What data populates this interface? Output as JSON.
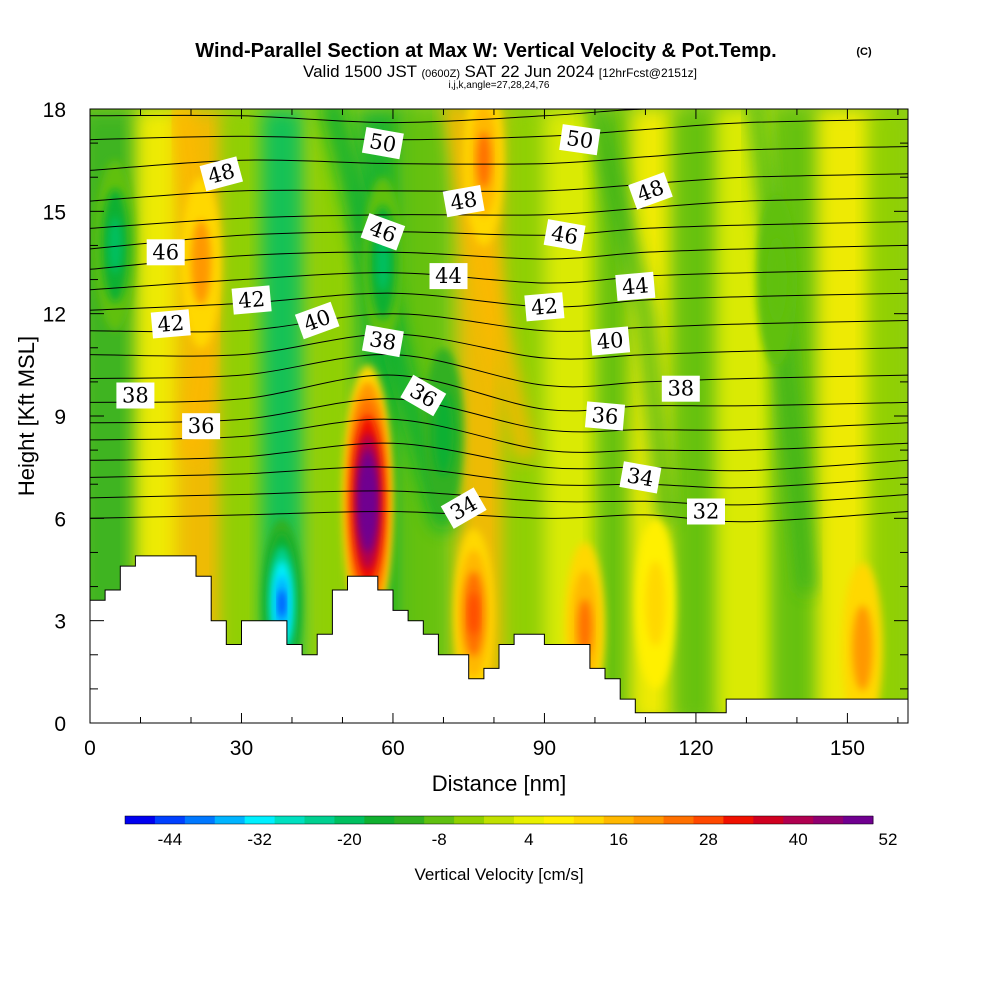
{
  "chart_data": {
    "type": "heatmap",
    "title": "Wind-Parallel Section at Max W: Vertical Velocity & Pot.Temp.",
    "title_mark": "(C)",
    "subtitle": {
      "valid_prefix": "Valid 1500 JST",
      "zulu": "(0600Z)",
      "date": "SAT 22 Jun 2024",
      "forecast": "[12hrFcst@2151z]",
      "indices": "i,j,k,angle=27,28,24,76"
    },
    "xlabel": "Distance [nm]",
    "ylabel": "Height [Kft MSL]",
    "xlim": [
      0,
      162
    ],
    "ylim": [
      0,
      18
    ],
    "xticks": [
      "0",
      "30",
      "60",
      "90",
      "120",
      "150"
    ],
    "yticks": [
      "0",
      "3",
      "6",
      "9",
      "12",
      "15",
      "18"
    ],
    "colorbar": {
      "label": "Vertical Velocity [cm/s]",
      "tick_labels": [
        "-44",
        "-32",
        "-20",
        "-8",
        "4",
        "16",
        "28",
        "40",
        "52"
      ],
      "colors": [
        "#0000f0",
        "#0040ff",
        "#0078ff",
        "#00b4ff",
        "#00f0ff",
        "#00e0c0",
        "#00d090",
        "#00c060",
        "#10b030",
        "#30b020",
        "#60c010",
        "#90d000",
        "#c0e000",
        "#e8f000",
        "#fff000",
        "#ffd800",
        "#ffb800",
        "#ff9800",
        "#ff7000",
        "#ff4800",
        "#f01000",
        "#d00020",
        "#b00050",
        "#900070",
        "#700090"
      ]
    },
    "wmax_feature": {
      "x_nm": 55,
      "z_kft": 6.5,
      "w_cms": 60
    },
    "updrafts": [
      {
        "x_nm": 22,
        "z_kft": 13.5,
        "w_cms": 18
      },
      {
        "x_nm": 78,
        "z_kft": 16.5,
        "w_cms": 22
      },
      {
        "x_nm": 76,
        "z_kft": 3.2,
        "w_cms": 28
      },
      {
        "x_nm": 98,
        "z_kft": 2.8,
        "w_cms": 24
      },
      {
        "x_nm": 112,
        "z_kft": 3.5,
        "w_cms": 12
      },
      {
        "x_nm": 153,
        "z_kft": 2.2,
        "w_cms": 18
      }
    ],
    "downdrafts": [
      {
        "x_nm": 38,
        "z_kft": 3.5,
        "w_cms": -44
      },
      {
        "x_nm": 58,
        "z_kft": 13.5,
        "w_cms": -22
      },
      {
        "x_nm": 70,
        "z_kft": 8.5,
        "w_cms": -18
      },
      {
        "x_nm": 5,
        "z_kft": 14,
        "w_cms": -20
      },
      {
        "x_nm": 136,
        "z_kft": 13,
        "w_cms": -10
      }
    ],
    "terrain": [
      [
        0,
        3.6
      ],
      [
        3,
        3.6
      ],
      [
        3,
        3.9
      ],
      [
        6,
        3.9
      ],
      [
        6,
        4.6
      ],
      [
        9,
        4.6
      ],
      [
        9,
        4.9
      ],
      [
        21,
        4.9
      ],
      [
        21,
        4.3
      ],
      [
        24,
        4.3
      ],
      [
        24,
        3.0
      ],
      [
        27,
        3.0
      ],
      [
        27,
        2.3
      ],
      [
        30,
        2.3
      ],
      [
        30,
        3.0
      ],
      [
        39,
        3.0
      ],
      [
        39,
        2.3
      ],
      [
        42,
        2.3
      ],
      [
        42,
        2.0
      ],
      [
        45,
        2.0
      ],
      [
        45,
        2.6
      ],
      [
        48,
        2.6
      ],
      [
        48,
        3.9
      ],
      [
        51,
        3.9
      ],
      [
        51,
        4.3
      ],
      [
        57,
        4.3
      ],
      [
        57,
        3.9
      ],
      [
        60,
        3.9
      ],
      [
        60,
        3.3
      ],
      [
        63,
        3.3
      ],
      [
        63,
        3.0
      ],
      [
        66,
        3.0
      ],
      [
        66,
        2.6
      ],
      [
        69,
        2.6
      ],
      [
        69,
        2.0
      ],
      [
        75,
        2.0
      ],
      [
        75,
        1.3
      ],
      [
        78,
        1.3
      ],
      [
        78,
        1.6
      ],
      [
        81,
        1.6
      ],
      [
        81,
        2.3
      ],
      [
        84,
        2.3
      ],
      [
        84,
        2.6
      ],
      [
        90,
        2.6
      ],
      [
        90,
        2.3
      ],
      [
        99,
        2.3
      ],
      [
        99,
        1.6
      ],
      [
        102,
        1.6
      ],
      [
        102,
        1.3
      ],
      [
        105,
        1.3
      ],
      [
        105,
        0.7
      ],
      [
        108,
        0.7
      ],
      [
        108,
        0.3
      ],
      [
        111,
        0.3
      ],
      [
        111,
        0.3
      ],
      [
        126,
        0.3
      ],
      [
        126,
        0.7
      ],
      [
        162,
        0.7
      ]
    ],
    "theta_contours": [
      {
        "label": "32",
        "pts": [
          [
            0,
            6.0
          ],
          [
            30,
            6.1
          ],
          [
            60,
            6.2
          ],
          [
            90,
            6.0
          ],
          [
            110,
            6.1
          ],
          [
            130,
            5.9
          ],
          [
            162,
            6.2
          ]
        ]
      },
      {
        "label": "33",
        "pts": [
          [
            0,
            6.6
          ],
          [
            30,
            6.7
          ],
          [
            60,
            6.8
          ],
          [
            90,
            6.5
          ],
          [
            110,
            6.5
          ],
          [
            130,
            6.4
          ],
          [
            162,
            6.7
          ]
        ]
      },
      {
        "label": "34",
        "pts": [
          [
            0,
            7.2
          ],
          [
            30,
            7.3
          ],
          [
            60,
            7.5
          ],
          [
            90,
            7.0
          ],
          [
            110,
            7.0
          ],
          [
            130,
            6.9
          ],
          [
            162,
            7.2
          ]
        ]
      },
      {
        "label": "35",
        "pts": [
          [
            0,
            7.7
          ],
          [
            30,
            7.8
          ],
          [
            60,
            8.2
          ],
          [
            90,
            7.5
          ],
          [
            110,
            7.5
          ],
          [
            130,
            7.4
          ],
          [
            162,
            7.7
          ]
        ]
      },
      {
        "label": "36",
        "pts": [
          [
            0,
            8.3
          ],
          [
            30,
            8.4
          ],
          [
            60,
            8.9
          ],
          [
            90,
            8.0
          ],
          [
            110,
            8.0
          ],
          [
            130,
            8.0
          ],
          [
            162,
            8.2
          ]
        ]
      },
      {
        "label": "37",
        "pts": [
          [
            0,
            8.8
          ],
          [
            30,
            8.9
          ],
          [
            60,
            9.5
          ],
          [
            90,
            8.6
          ],
          [
            110,
            8.6
          ],
          [
            130,
            8.6
          ],
          [
            162,
            8.8
          ]
        ]
      },
      {
        "label": "38",
        "pts": [
          [
            0,
            9.4
          ],
          [
            30,
            9.5
          ],
          [
            60,
            10.2
          ],
          [
            90,
            9.2
          ],
          [
            110,
            9.3
          ],
          [
            130,
            9.3
          ],
          [
            162,
            9.4
          ]
        ]
      },
      {
        "label": "39",
        "pts": [
          [
            0,
            10.1
          ],
          [
            30,
            10.2
          ],
          [
            60,
            10.8
          ],
          [
            90,
            9.9
          ],
          [
            110,
            10.0
          ],
          [
            130,
            10.1
          ],
          [
            162,
            10.2
          ]
        ]
      },
      {
        "label": "40",
        "pts": [
          [
            0,
            10.8
          ],
          [
            30,
            10.8
          ],
          [
            60,
            11.4
          ],
          [
            90,
            10.7
          ],
          [
            110,
            10.8
          ],
          [
            130,
            10.9
          ],
          [
            162,
            11.0
          ]
        ]
      },
      {
        "label": "41",
        "pts": [
          [
            0,
            11.5
          ],
          [
            30,
            11.5
          ],
          [
            60,
            12.0
          ],
          [
            90,
            11.5
          ],
          [
            110,
            11.6
          ],
          [
            130,
            11.7
          ],
          [
            162,
            11.8
          ]
        ]
      },
      {
        "label": "42",
        "pts": [
          [
            0,
            12.1
          ],
          [
            30,
            12.3
          ],
          [
            60,
            12.6
          ],
          [
            90,
            12.2
          ],
          [
            110,
            12.4
          ],
          [
            130,
            12.5
          ],
          [
            162,
            12.6
          ]
        ]
      },
      {
        "label": "43",
        "pts": [
          [
            0,
            12.7
          ],
          [
            30,
            13.0
          ],
          [
            60,
            13.2
          ],
          [
            90,
            12.9
          ],
          [
            110,
            13.1
          ],
          [
            130,
            13.2
          ],
          [
            162,
            13.3
          ]
        ]
      },
      {
        "label": "44",
        "pts": [
          [
            0,
            13.3
          ],
          [
            30,
            13.7
          ],
          [
            60,
            13.8
          ],
          [
            90,
            13.6
          ],
          [
            110,
            13.8
          ],
          [
            130,
            13.9
          ],
          [
            162,
            14.0
          ]
        ]
      },
      {
        "label": "45",
        "pts": [
          [
            0,
            13.9
          ],
          [
            30,
            14.3
          ],
          [
            60,
            14.4
          ],
          [
            90,
            14.3
          ],
          [
            110,
            14.5
          ],
          [
            130,
            14.6
          ],
          [
            162,
            14.7
          ]
        ]
      },
      {
        "label": "46",
        "pts": [
          [
            0,
            14.5
          ],
          [
            30,
            14.8
          ],
          [
            60,
            14.9
          ],
          [
            90,
            14.9
          ],
          [
            110,
            15.1
          ],
          [
            130,
            15.3
          ],
          [
            162,
            15.4
          ]
        ]
      },
      {
        "label": "47",
        "pts": [
          [
            0,
            15.3
          ],
          [
            30,
            15.6
          ],
          [
            60,
            15.6
          ],
          [
            90,
            15.6
          ],
          [
            110,
            15.8
          ],
          [
            130,
            16.0
          ],
          [
            162,
            16.1
          ]
        ]
      },
      {
        "label": "48",
        "pts": [
          [
            0,
            16.2
          ],
          [
            30,
            16.5
          ],
          [
            60,
            16.4
          ],
          [
            90,
            16.4
          ],
          [
            110,
            16.6
          ],
          [
            130,
            16.8
          ],
          [
            162,
            16.9
          ]
        ]
      },
      {
        "label": "49",
        "pts": [
          [
            0,
            17.1
          ],
          [
            30,
            17.2
          ],
          [
            60,
            17.1
          ],
          [
            90,
            17.2
          ],
          [
            110,
            17.4
          ],
          [
            130,
            17.6
          ],
          [
            162,
            17.7
          ]
        ]
      },
      {
        "label": "50",
        "pts": [
          [
            0,
            17.8
          ],
          [
            30,
            17.8
          ],
          [
            60,
            17.6
          ],
          [
            90,
            17.8
          ],
          [
            110,
            18.0
          ],
          [
            130,
            18.0
          ],
          [
            162,
            18.0
          ]
        ]
      }
    ],
    "contour_labels": [
      {
        "text": "50",
        "x": 58,
        "z": 17.0,
        "angle": 10
      },
      {
        "text": "50",
        "x": 97,
        "z": 17.1,
        "angle": 8
      },
      {
        "text": "48",
        "x": 26,
        "z": 16.1,
        "angle": -15
      },
      {
        "text": "48",
        "x": 74,
        "z": 15.3,
        "angle": -10
      },
      {
        "text": "48",
        "x": 111,
        "z": 15.6,
        "angle": -20
      },
      {
        "text": "46",
        "x": 15,
        "z": 13.8,
        "angle": 0
      },
      {
        "text": "46",
        "x": 58,
        "z": 14.4,
        "angle": 20
      },
      {
        "text": "46",
        "x": 94,
        "z": 14.3,
        "angle": 10
      },
      {
        "text": "44",
        "x": 71,
        "z": 13.1,
        "angle": 0
      },
      {
        "text": "44",
        "x": 108,
        "z": 12.8,
        "angle": -5
      },
      {
        "text": "42",
        "x": 32,
        "z": 12.4,
        "angle": -5
      },
      {
        "text": "42",
        "x": 16,
        "z": 11.7,
        "angle": -5
      },
      {
        "text": "42",
        "x": 90,
        "z": 12.2,
        "angle": -5
      },
      {
        "text": "40",
        "x": 45,
        "z": 11.8,
        "angle": -20
      },
      {
        "text": "40",
        "x": 103,
        "z": 11.2,
        "angle": -5
      },
      {
        "text": "38",
        "x": 58,
        "z": 11.2,
        "angle": 10
      },
      {
        "text": "38",
        "x": 9,
        "z": 9.6,
        "angle": 0
      },
      {
        "text": "38",
        "x": 117,
        "z": 9.8,
        "angle": 0
      },
      {
        "text": "36",
        "x": 66,
        "z": 9.6,
        "angle": 30
      },
      {
        "text": "36",
        "x": 22,
        "z": 8.7,
        "angle": 0
      },
      {
        "text": "36",
        "x": 102,
        "z": 9.0,
        "angle": 5
      },
      {
        "text": "34",
        "x": 74,
        "z": 6.3,
        "angle": -30
      },
      {
        "text": "34",
        "x": 109,
        "z": 7.2,
        "angle": 10
      },
      {
        "text": "32",
        "x": 122,
        "z": 6.2,
        "angle": 0
      }
    ]
  }
}
